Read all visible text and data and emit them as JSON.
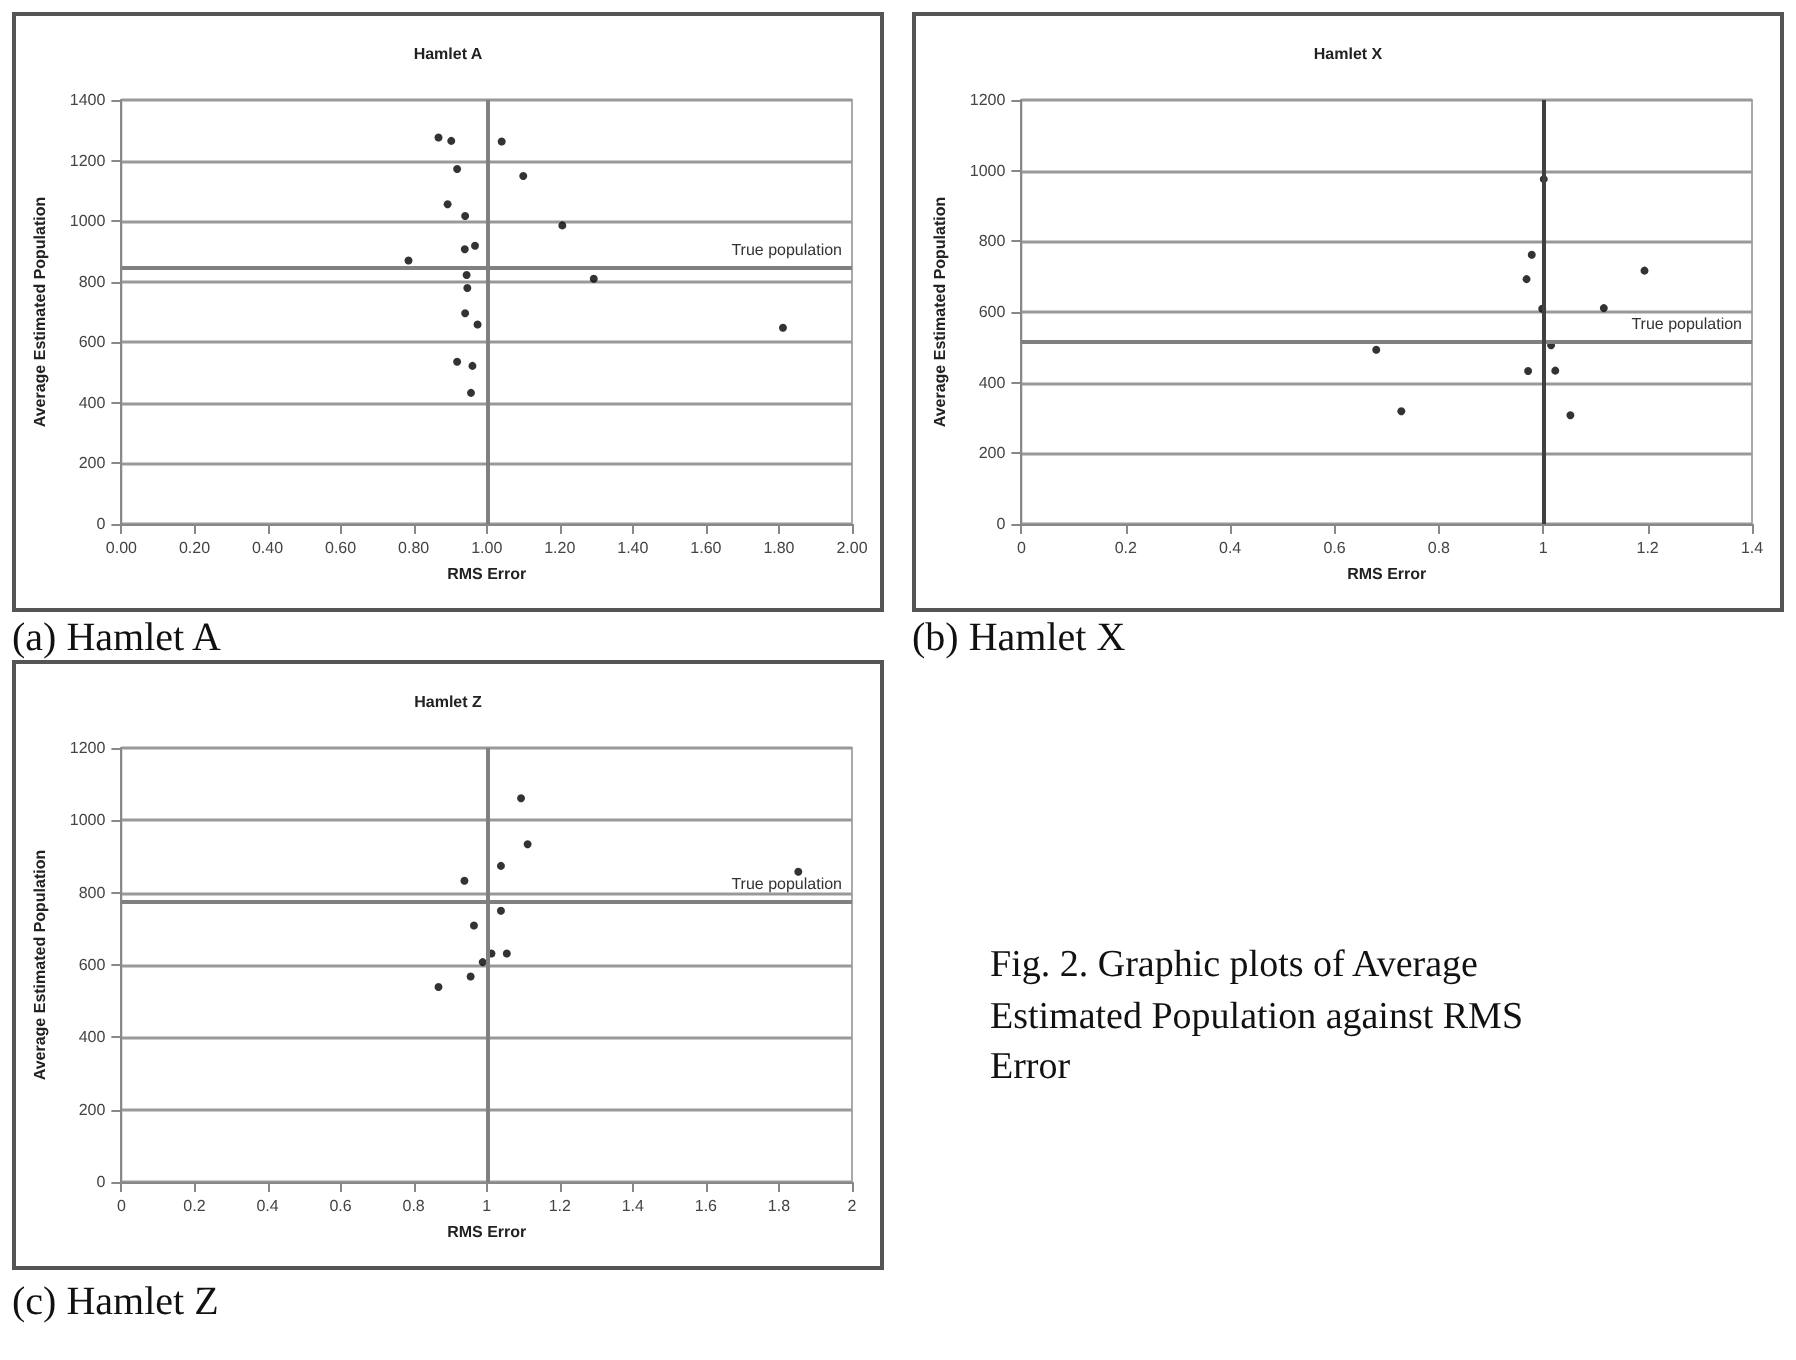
{
  "chart_data": [
    {
      "type": "scatter",
      "title": "Hamlet A",
      "xlabel": "RMS Error",
      "ylabel": "Average Estimated Population",
      "annotations": [
        "(a) Hamlet A"
      ],
      "x": [
        0.868,
        0.903,
        1.041,
        0.919,
        1.1,
        0.893,
        0.941,
        1.207,
        0.968,
        0.94,
        0.786,
        0.945,
        1.293,
        0.947,
        0.941,
        0.975,
        1.811,
        0.919,
        0.961,
        0.957
      ],
      "values": [
        1276,
        1265,
        1263,
        1172,
        1149,
        1056,
        1017,
        986,
        919,
        907,
        870,
        822,
        810,
        779,
        696,
        659,
        648,
        536,
        522,
        433
      ],
      "color": "#000000",
      "marker": "circle",
      "grid": "y",
      "xlim": [
        0,
        2
      ],
      "xticks": [
        {
          "value": 0,
          "label": "0.00"
        },
        {
          "value": 0.2,
          "label": "0.20"
        },
        {
          "value": 0.4,
          "label": "0.40"
        },
        {
          "value": 0.6,
          "label": "0.60"
        },
        {
          "value": 0.8,
          "label": "0.80"
        },
        {
          "value": 1,
          "label": "1.00"
        },
        {
          "value": 1.2,
          "label": "1.20"
        },
        {
          "value": 1.4,
          "label": "1.40"
        },
        {
          "value": 1.6,
          "label": "1.60"
        },
        {
          "value": 1.8,
          "label": "1.80"
        },
        {
          "value": 2,
          "label": "2.00"
        }
      ],
      "ylim": [
        0,
        1400
      ],
      "yticks": [
        0,
        200,
        400,
        600,
        800,
        1000,
        1200,
        1400
      ],
      "ref_lines": [
        {
          "axis": "y",
          "value": 845,
          "label": "True population",
          "color": "#808080"
        },
        {
          "axis": "x",
          "value": 1,
          "label": null,
          "color": "#808080"
        }
      ]
    },
    {
      "type": "scatter",
      "title": "Hamlet X",
      "xlabel": "RMS Error",
      "ylabel": "Average Estimated Population",
      "annotations": [
        "(b) Hamlet X"
      ],
      "x": [
        1.001,
        0.978,
        0.968,
        1.194,
        0.998,
        1.116,
        0.68,
        1.015,
        0.971,
        1.023,
        0.728,
        1.052
      ],
      "values": [
        976,
        762,
        693,
        717,
        609,
        611,
        493,
        506,
        433,
        434,
        319,
        308
      ],
      "color": "#000000",
      "marker": "circle",
      "grid": "y",
      "xlim": [
        0,
        1.4
      ],
      "xticks": [
        0,
        0.2,
        0.4,
        0.6,
        0.8,
        1,
        1.2,
        1.4
      ],
      "ylim": [
        0,
        1200
      ],
      "yticks": [
        0,
        200,
        400,
        600,
        800,
        1000,
        1200
      ],
      "ref_lines": [
        {
          "axis": "y",
          "value": 516,
          "label": "True population",
          "color": "#808080"
        },
        {
          "axis": "x",
          "value": 1,
          "label": null,
          "color": "#404040"
        }
      ]
    },
    {
      "type": "scatter",
      "title": "Hamlet Z",
      "xlabel": "RMS Error",
      "ylabel": "Average Estimated Population",
      "annotations": [
        "(c) Hamlet Z",
        "Fig. 2. Graphic plots of Average Estimated Population against RMS Error"
      ],
      "x": [
        1.094,
        1.112,
        1.039,
        0.939,
        1.853,
        1.039,
        0.965,
        1.013,
        1.055,
        0.989,
        0.956,
        0.868
      ],
      "values": [
        1061,
        934,
        874,
        833,
        858,
        750,
        709,
        632,
        632,
        608,
        568,
        539
      ],
      "color": "#000000",
      "marker": "circle",
      "grid": "y",
      "xlim": [
        0,
        2
      ],
      "xticks": [
        0,
        0.2,
        0.4,
        0.6,
        0.8,
        1,
        1.2,
        1.4,
        1.6,
        1.8,
        2
      ],
      "ylim": [
        0,
        1200
      ],
      "yticks": [
        0,
        200,
        400,
        600,
        800,
        1000,
        1200
      ],
      "ref_lines": [
        {
          "axis": "y",
          "value": 773,
          "label": "True population",
          "color": "#808080"
        },
        {
          "axis": "x",
          "value": 1,
          "label": null,
          "color": "#808080"
        }
      ]
    }
  ]
}
